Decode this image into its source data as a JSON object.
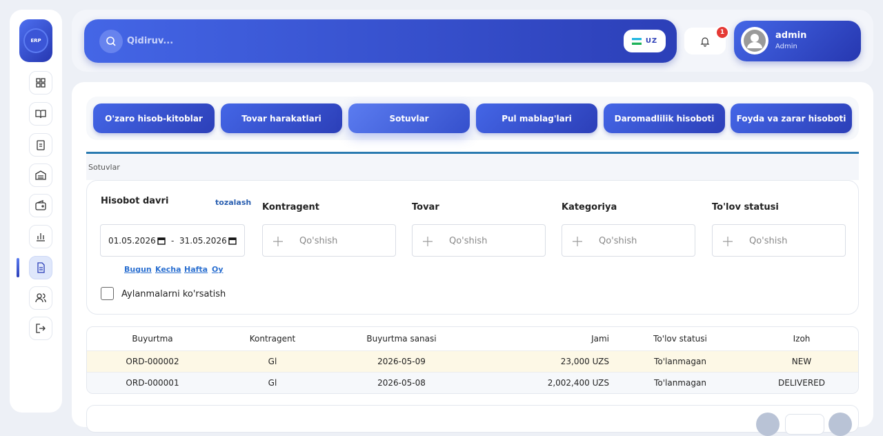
{
  "sidebar": {
    "logo": "ERP"
  },
  "header": {
    "search_placeholder": "Qidiruv...",
    "lang": "UZ",
    "notifications": 1,
    "user": {
      "name": "admin",
      "role": "Admin"
    }
  },
  "tabs": [
    "O'zaro hisob-kitoblar",
    "Tovar harakatlari",
    "Sotuvlar",
    "Pul mablag'lari",
    "Daromadlilik hisoboti",
    "Foyda va zarar hisoboti"
  ],
  "active_tab": 2,
  "breadcrumb": "Sotuvlar",
  "filters": {
    "period_label": "Hisobot davri",
    "reset": "tozalash",
    "date_from": "01.05.2026",
    "date_separator": "-",
    "date_to": "31.05.2026",
    "quick": [
      "Bugun",
      "Kecha",
      "Hafta",
      "Oy"
    ],
    "checkbox": "Aylanmalarni ko'rsatish",
    "fields": [
      {
        "label": "Kontragent",
        "placeholder": "Qo'shish"
      },
      {
        "label": "Tovar",
        "placeholder": "Qo'shish"
      },
      {
        "label": "Kategoriya",
        "placeholder": "Qo'shish"
      },
      {
        "label": "To'lov statusi",
        "placeholder": "Qo'shish"
      }
    ]
  },
  "table": {
    "columns": [
      "Buyurtma",
      "Kontragent",
      "Buyurtma sanasi",
      "Jami",
      "To'lov statusi",
      "Izoh"
    ],
    "rows": [
      [
        "ORD-000002",
        "Gl",
        "2026-05-09",
        "23,000 UZS",
        "To'lanmagan",
        "NEW"
      ],
      [
        "ORD-000001",
        "Gl",
        "2026-05-08",
        "2,002,400 UZS",
        "To'lanmagan",
        "DELIVERED"
      ]
    ]
  }
}
